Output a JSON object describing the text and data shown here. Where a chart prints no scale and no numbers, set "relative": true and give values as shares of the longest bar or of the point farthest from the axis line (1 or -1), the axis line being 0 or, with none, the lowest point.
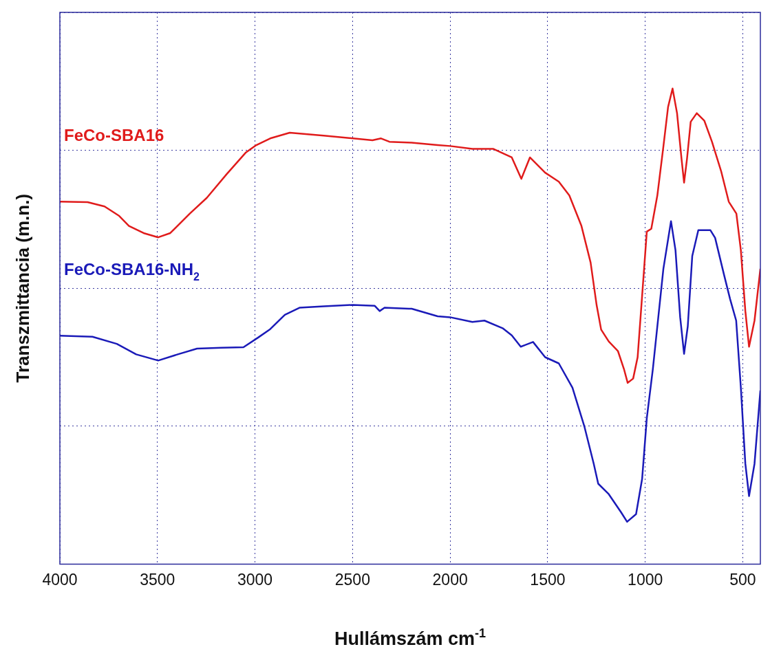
{
  "chart_data": {
    "type": "line",
    "xlabel": "Hullámszám cm$^{-1}$",
    "ylabel": "Transzmittancia (m.n.)",
    "relative": true,
    "xlim": [
      4000,
      410
    ],
    "xticks": [
      4000,
      3500,
      3000,
      2500,
      2000,
      1500,
      1000,
      500
    ],
    "grid": true,
    "legend": false,
    "marker": "none",
    "line_style": "solid",
    "series": [
      {
        "name": "FeCo-SBA16",
        "color": "#e01b1b",
        "x": [
          4000,
          3858,
          3771,
          3696,
          3646,
          3571,
          3496,
          3434,
          3334,
          3247,
          3147,
          3048,
          2997,
          2922,
          2822,
          2648,
          2398,
          2354,
          2311,
          2197,
          2064,
          2000,
          1886,
          1778,
          1684,
          1635,
          1591,
          1513,
          1443,
          1389,
          1327,
          1280,
          1249,
          1226,
          1187,
          1140,
          1109,
          1090,
          1062,
          1039,
          1016,
          992,
          969,
          938,
          907,
          883,
          860,
          837,
          814,
          801,
          786,
          767,
          736,
          697,
          658,
          611,
          572,
          533,
          510,
          487,
          468,
          440,
          410
        ],
        "values": [
          0.762,
          0.761,
          0.752,
          0.732,
          0.711,
          0.696,
          0.687,
          0.696,
          0.737,
          0.77,
          0.819,
          0.865,
          0.88,
          0.895,
          0.907,
          0.901,
          0.891,
          0.895,
          0.888,
          0.886,
          0.881,
          0.879,
          0.873,
          0.873,
          0.855,
          0.81,
          0.855,
          0.823,
          0.804,
          0.775,
          0.711,
          0.634,
          0.544,
          0.493,
          0.468,
          0.448,
          0.41,
          0.381,
          0.39,
          0.435,
          0.564,
          0.699,
          0.705,
          0.775,
          0.878,
          0.961,
          1,
          0.948,
          0.852,
          0.802,
          0.852,
          0.93,
          0.948,
          0.932,
          0.888,
          0.826,
          0.762,
          0.737,
          0.66,
          0.532,
          0.457,
          0.512,
          0.621
        ]
      },
      {
        "name": "FeCo-SBA16-NH$_{2}$",
        "color": "#1a1ab8",
        "x": [
          4000,
          3833,
          3708,
          3609,
          3496,
          3396,
          3297,
          3172,
          3059,
          2985,
          2922,
          2847,
          2772,
          2648,
          2498,
          2386,
          2361,
          2336,
          2211,
          2197,
          2064,
          2000,
          1886,
          1824,
          1731,
          1684,
          1638,
          1575,
          1513,
          1443,
          1373,
          1311,
          1264,
          1241,
          1187,
          1124,
          1093,
          1047,
          1016,
          992,
          961,
          907,
          868,
          845,
          821,
          801,
          782,
          759,
          728,
          666,
          642,
          596,
          565,
          534,
          510,
          487,
          468,
          440,
          410
        ],
        "values": [
          0.48,
          0.478,
          0.463,
          0.441,
          0.428,
          0.441,
          0.453,
          0.455,
          0.456,
          0.476,
          0.494,
          0.524,
          0.539,
          0.542,
          0.545,
          0.543,
          0.532,
          0.539,
          0.537,
          0.537,
          0.521,
          0.519,
          0.509,
          0.512,
          0.496,
          0.481,
          0.457,
          0.467,
          0.435,
          0.422,
          0.371,
          0.288,
          0.211,
          0.169,
          0.147,
          0.109,
          0.089,
          0.105,
          0.179,
          0.307,
          0.41,
          0.621,
          0.721,
          0.66,
          0.519,
          0.442,
          0.5,
          0.648,
          0.702,
          0.702,
          0.686,
          0.608,
          0.557,
          0.512,
          0.371,
          0.211,
          0.143,
          0.211,
          0.365
        ]
      }
    ]
  }
}
